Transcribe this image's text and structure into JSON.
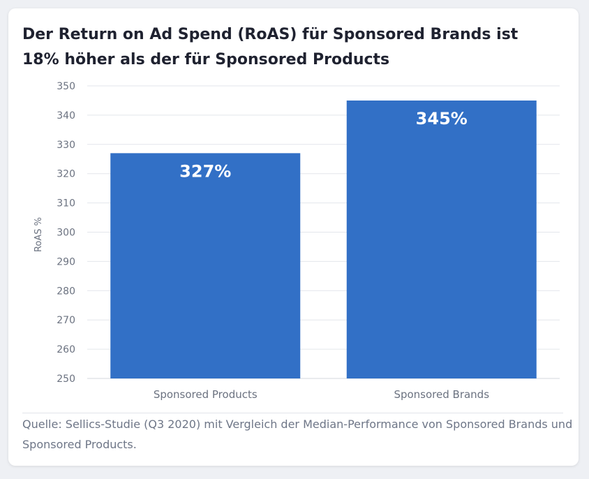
{
  "title": "Der Return on Ad Spend (RoAS) für Sponsored Brands ist 18% höher als der für Sponsored Products",
  "source": "Quelle: Sellics-Studie (Q3 2020) mit Vergleich der Median-Performance von Sponsored Brands und Sponsored Products.",
  "colors": {
    "bar": "#3270c6",
    "grid": "#e3e6eb",
    "axis_text": "#6b7280",
    "data_label": "#ffffff"
  },
  "chart_data": {
    "type": "bar",
    "title": "Der Return on Ad Spend (RoAS) für Sponsored Brands ist 18% höher als der für Sponsored Products",
    "categories": [
      "Sponsored Products",
      "Sponsored Brands"
    ],
    "values": [
      327,
      345
    ],
    "data_labels": [
      "327%",
      "345%"
    ],
    "xlabel": "",
    "ylabel": "RoAS %",
    "ylim": [
      250,
      350
    ],
    "yticks": [
      250,
      260,
      270,
      280,
      290,
      300,
      310,
      320,
      330,
      340,
      350
    ],
    "grid": true,
    "legend": "none"
  }
}
